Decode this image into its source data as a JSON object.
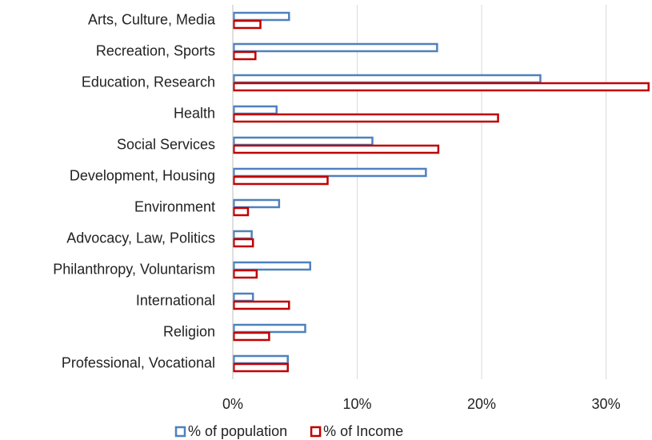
{
  "chart_data": {
    "type": "hbar",
    "categories": [
      "Arts, Culture, Media",
      "Recreation, Sports",
      "Education, Research",
      "Health",
      "Social Services",
      "Development, Housing",
      "Environment",
      "Advocacy, Law, Politics",
      "Philanthropy, Voluntarism",
      "International",
      "Religion",
      "Professional, Vocational"
    ],
    "series": [
      {
        "name": "% of population",
        "color": "#4f81bd",
        "values": [
          4.6,
          16.5,
          24.8,
          3.6,
          11.3,
          15.6,
          3.8,
          1.6,
          6.3,
          1.7,
          5.9,
          4.5
        ]
      },
      {
        "name": "% of Income",
        "color": "#c00000",
        "values": [
          2.3,
          1.9,
          33.5,
          21.4,
          16.6,
          7.7,
          1.3,
          1.7,
          2.0,
          4.6,
          3.0,
          4.5
        ]
      }
    ],
    "xlim": [
      0,
      33.5
    ],
    "xticks": [
      {
        "value": 0,
        "label": "0%"
      },
      {
        "value": 10,
        "label": "10%"
      },
      {
        "value": 20,
        "label": "20%"
      },
      {
        "value": 30,
        "label": "30%"
      }
    ],
    "grid": true,
    "legend": "bottom"
  }
}
